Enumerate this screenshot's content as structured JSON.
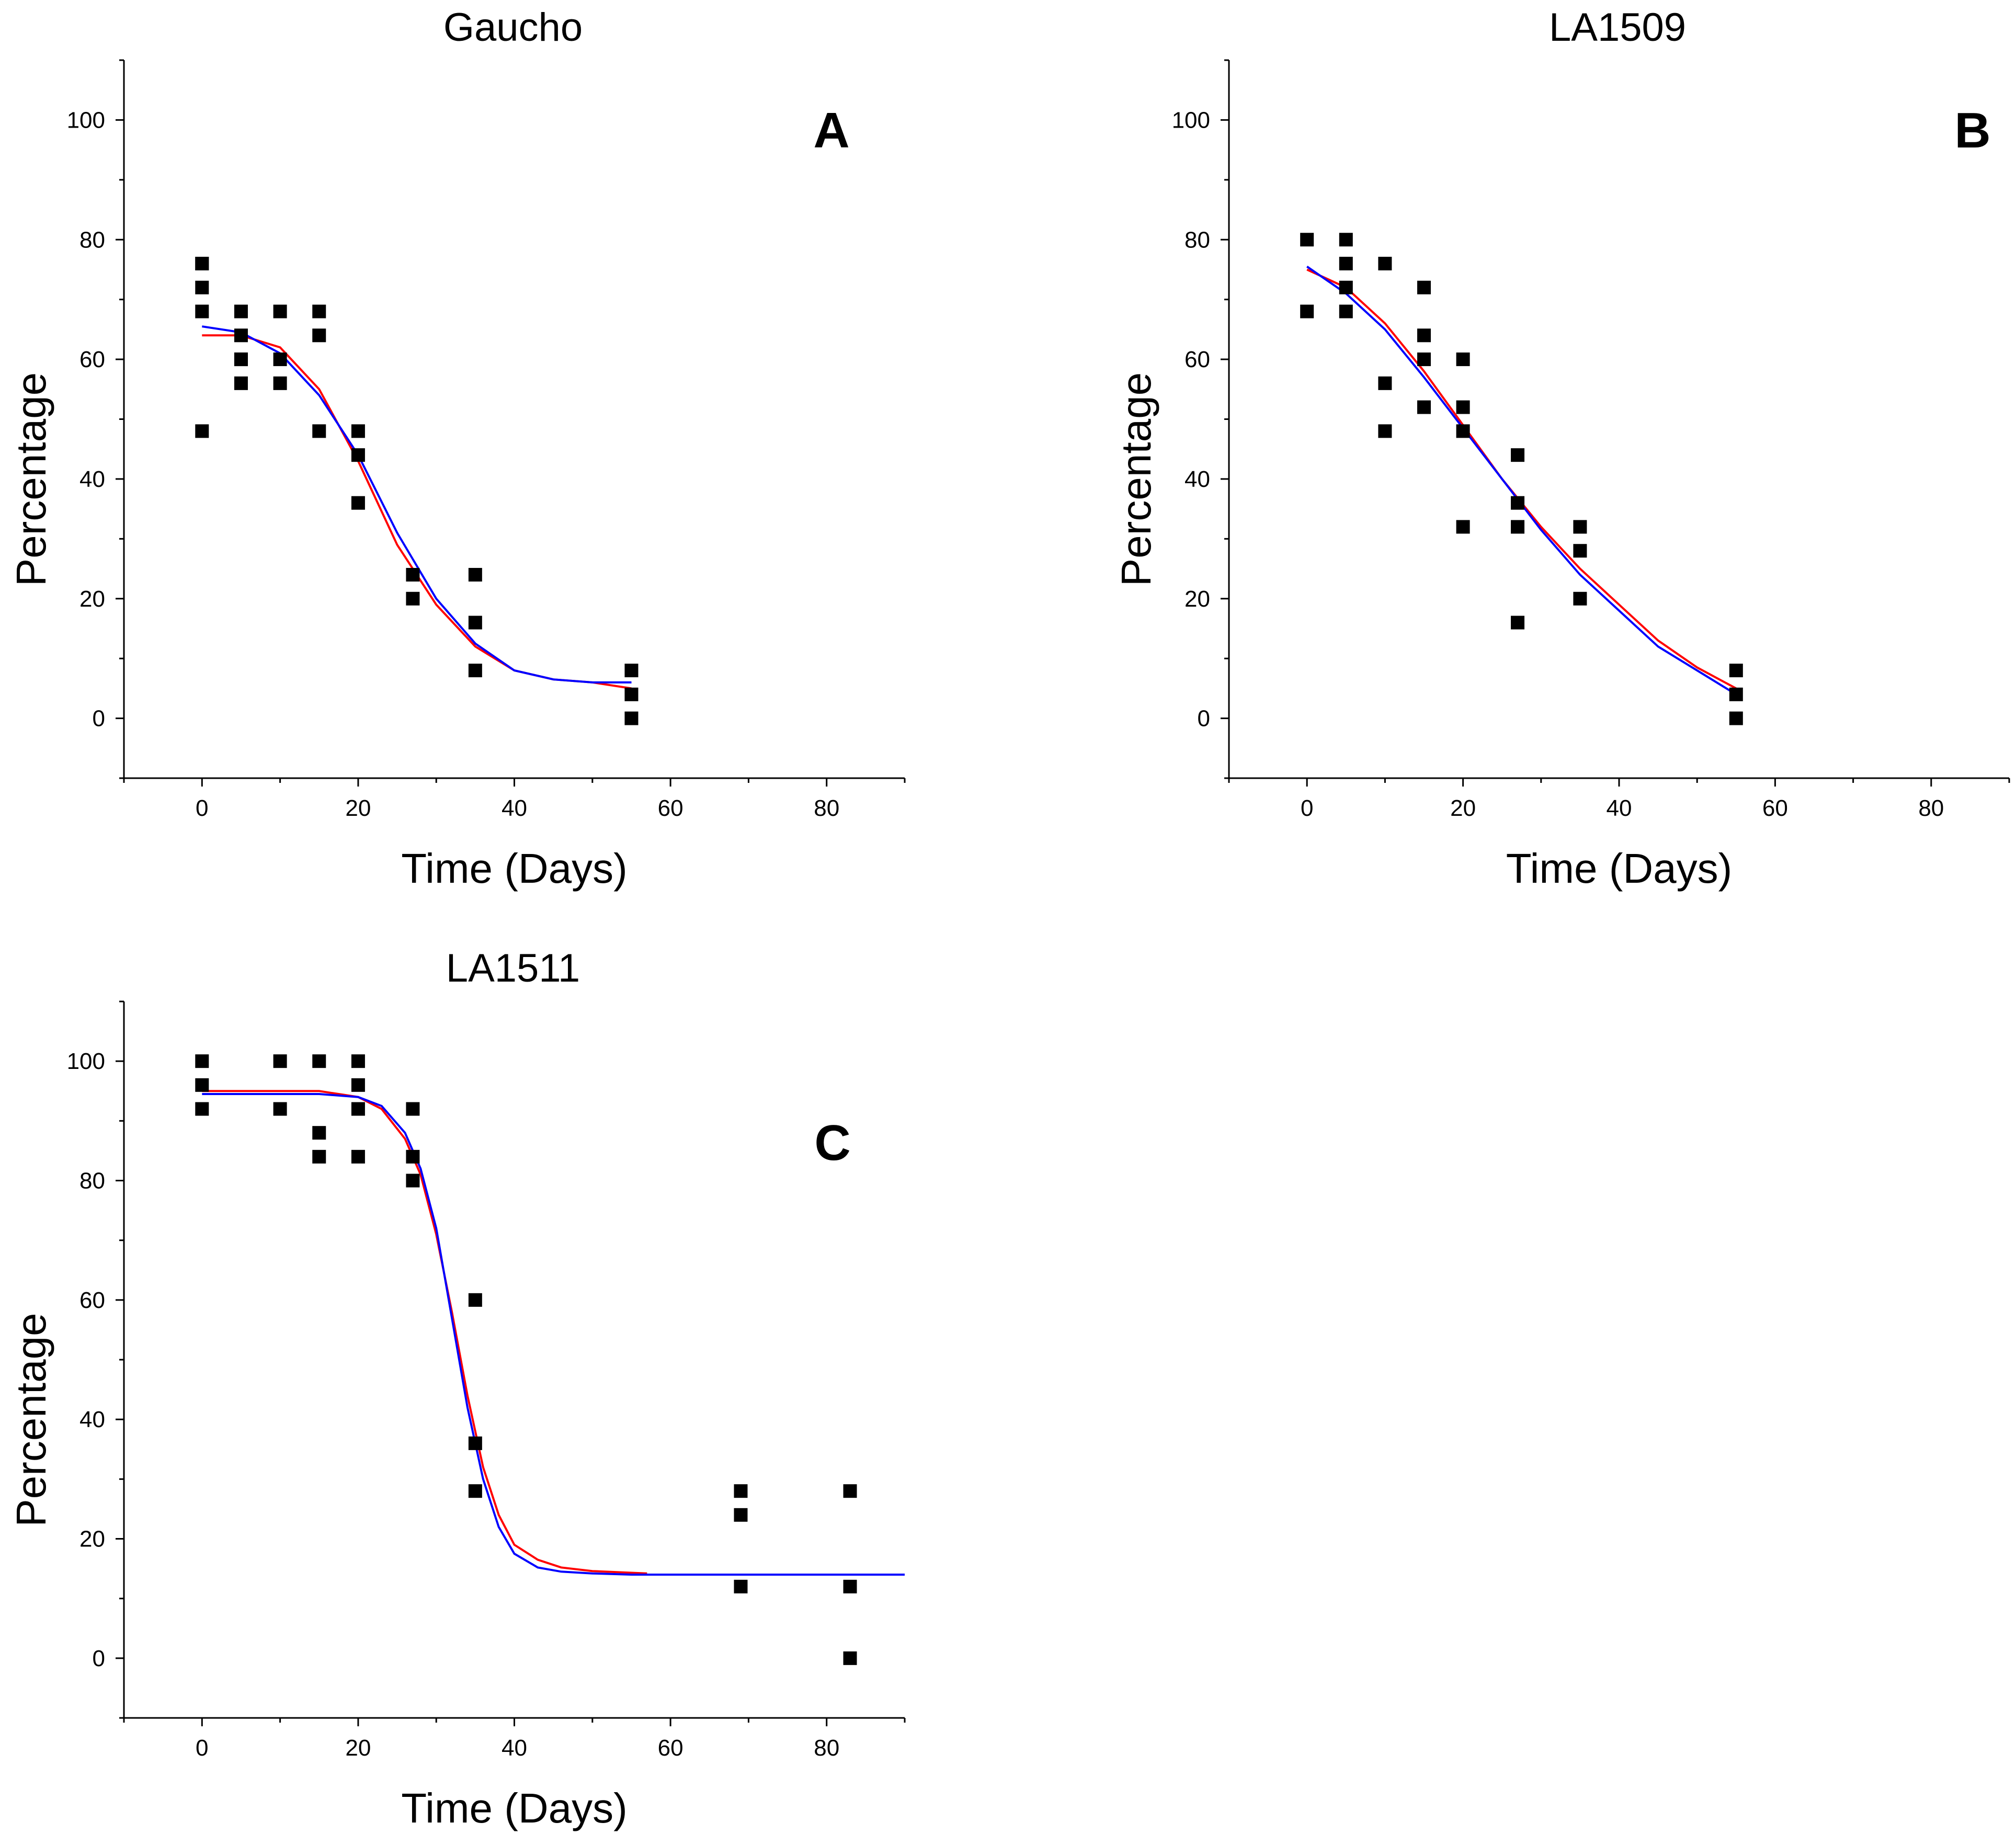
{
  "chart_data": [
    {
      "type": "scatter",
      "title": "Gaucho",
      "panel_label": "A",
      "xlabel": "Time (Days)",
      "ylabel": "Percentage",
      "xlim": [
        -10,
        90
      ],
      "ylim": [
        -10,
        110
      ],
      "xticks": [
        0,
        20,
        40,
        60,
        80
      ],
      "yticks": [
        0,
        20,
        40,
        60,
        80,
        100
      ],
      "points": {
        "x": [
          0,
          0,
          0,
          0,
          0,
          5,
          5,
          5,
          5,
          5,
          10,
          10,
          10,
          15,
          15,
          15,
          20,
          20,
          20,
          27,
          27,
          35,
          35,
          35,
          55,
          55,
          55
        ],
        "y": [
          76,
          72,
          68,
          48,
          76,
          68,
          64,
          60,
          56,
          60,
          68,
          60,
          56,
          68,
          64,
          48,
          48,
          44,
          36,
          24,
          20,
          24,
          16,
          8,
          8,
          4,
          0
        ]
      },
      "series": [
        {
          "name": "fit-red",
          "color": "#ff0000",
          "x": [
            0,
            5,
            10,
            15,
            20,
            25,
            30,
            35,
            40,
            45,
            50,
            55
          ],
          "y": [
            64,
            64,
            62,
            55,
            43,
            29,
            19,
            12,
            8,
            6.5,
            6,
            5
          ]
        },
        {
          "name": "fit-blue",
          "color": "#0000ff",
          "x": [
            0,
            5,
            10,
            15,
            20,
            25,
            30,
            35,
            40,
            45,
            50,
            55
          ],
          "y": [
            65.5,
            64.5,
            61,
            54,
            44,
            31,
            20,
            12.5,
            8,
            6.5,
            6,
            6
          ]
        }
      ]
    },
    {
      "type": "scatter",
      "title": "LA1509",
      "panel_label": "B",
      "xlabel": "Time (Days)",
      "ylabel": "Percentage",
      "xlim": [
        -10,
        90
      ],
      "ylim": [
        -10,
        110
      ],
      "xticks": [
        0,
        20,
        40,
        60,
        80
      ],
      "yticks": [
        0,
        20,
        40,
        60,
        80,
        100
      ],
      "points": {
        "x": [
          0,
          0,
          5,
          5,
          5,
          5,
          10,
          10,
          10,
          15,
          15,
          15,
          15,
          20,
          20,
          20,
          20,
          27,
          27,
          27,
          27,
          35,
          35,
          35,
          55,
          55,
          55
        ],
        "y": [
          80,
          68,
          80,
          76,
          72,
          68,
          76,
          56,
          48,
          72,
          64,
          60,
          52,
          60,
          52,
          48,
          32,
          44,
          36,
          32,
          16,
          32,
          28,
          20,
          8,
          4,
          0
        ]
      },
      "series": [
        {
          "name": "fit-red",
          "color": "#ff0000",
          "x": [
            0,
            5,
            10,
            15,
            20,
            25,
            30,
            35,
            40,
            45,
            50,
            55
          ],
          "y": [
            75,
            72,
            66,
            58,
            49,
            40,
            32,
            25,
            19,
            13,
            8.5,
            5
          ]
        },
        {
          "name": "fit-blue",
          "color": "#0000ff",
          "x": [
            0,
            5,
            10,
            15,
            20,
            25,
            30,
            35,
            40,
            45,
            50,
            55
          ],
          "y": [
            75.5,
            71,
            65,
            57,
            48.5,
            40,
            31.5,
            24,
            18,
            12,
            8,
            4
          ]
        }
      ]
    },
    {
      "type": "scatter",
      "title": "LA1511",
      "panel_label": "C",
      "xlabel": "Time (Days)",
      "ylabel": "Percentage",
      "xlim": [
        -10,
        90
      ],
      "ylim": [
        -10,
        110
      ],
      "xticks": [
        0,
        20,
        40,
        60,
        80
      ],
      "yticks": [
        0,
        20,
        40,
        60,
        80,
        100
      ],
      "points": {
        "x": [
          0,
          0,
          0,
          10,
          10,
          15,
          15,
          15,
          20,
          20,
          20,
          20,
          27,
          27,
          27,
          35,
          35,
          35,
          69,
          69,
          69,
          83,
          83,
          83
        ],
        "y": [
          100,
          96,
          92,
          100,
          92,
          100,
          88,
          84,
          100,
          96,
          92,
          84,
          92,
          84,
          80,
          60,
          36,
          28,
          28,
          24,
          12,
          28,
          12,
          0
        ]
      },
      "series": [
        {
          "name": "fit-red",
          "color": "#ff0000",
          "x": [
            0,
            10,
            15,
            20,
            23,
            26,
            28,
            30,
            32,
            34,
            36,
            38,
            40,
            43,
            46,
            50,
            57
          ],
          "y": [
            95,
            95,
            95,
            94,
            92,
            87,
            81,
            71,
            58,
            44,
            32,
            24,
            19,
            16.5,
            15.2,
            14.6,
            14.2
          ]
        },
        {
          "name": "fit-blue",
          "color": "#0000ff",
          "x": [
            0,
            10,
            15,
            20,
            23,
            26,
            28,
            30,
            32,
            34,
            36,
            38,
            40,
            43,
            46,
            50,
            55,
            60,
            70,
            80,
            90
          ],
          "y": [
            94.5,
            94.5,
            94.5,
            94,
            92.5,
            88,
            82,
            72,
            57,
            42,
            30,
            22,
            17.5,
            15.2,
            14.5,
            14.2,
            14,
            14,
            14,
            14,
            14
          ]
        }
      ]
    }
  ]
}
